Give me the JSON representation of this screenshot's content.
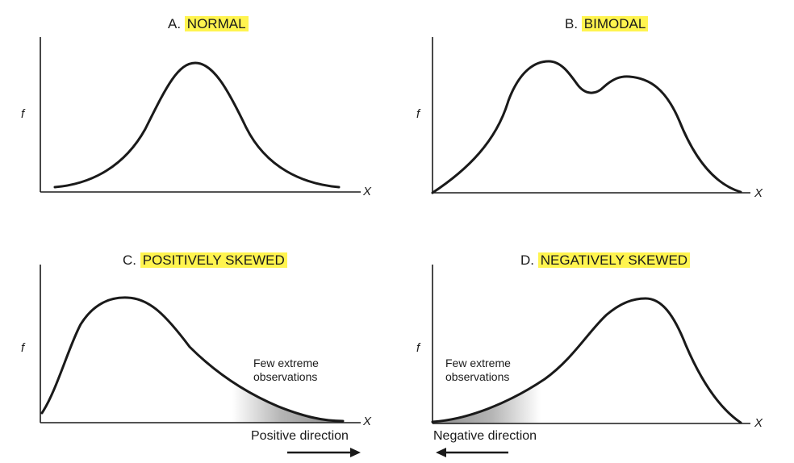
{
  "panels": {
    "a": {
      "letter": "A.",
      "name": "NORMAL",
      "y_label": "f",
      "x_label": "X"
    },
    "b": {
      "letter": "B.",
      "name": "BIMODAL",
      "y_label": "f",
      "x_label": "X"
    },
    "c": {
      "letter": "C.",
      "name": "POSITIVELY SKEWED",
      "y_label": "f",
      "x_label": "X",
      "note_line1": "Few extreme",
      "note_line2": "observations",
      "direction": "Positive direction"
    },
    "d": {
      "letter": "D.",
      "name": "NEGATIVELY SKEWED",
      "y_label": "f",
      "x_label": "X",
      "note_line1": "Few extreme",
      "note_line2": "observations",
      "direction": "Negative direction"
    }
  },
  "colors": {
    "highlight": "#fff44f",
    "ink": "#1a1a1a",
    "tail_shade": "#8c8c8c"
  }
}
